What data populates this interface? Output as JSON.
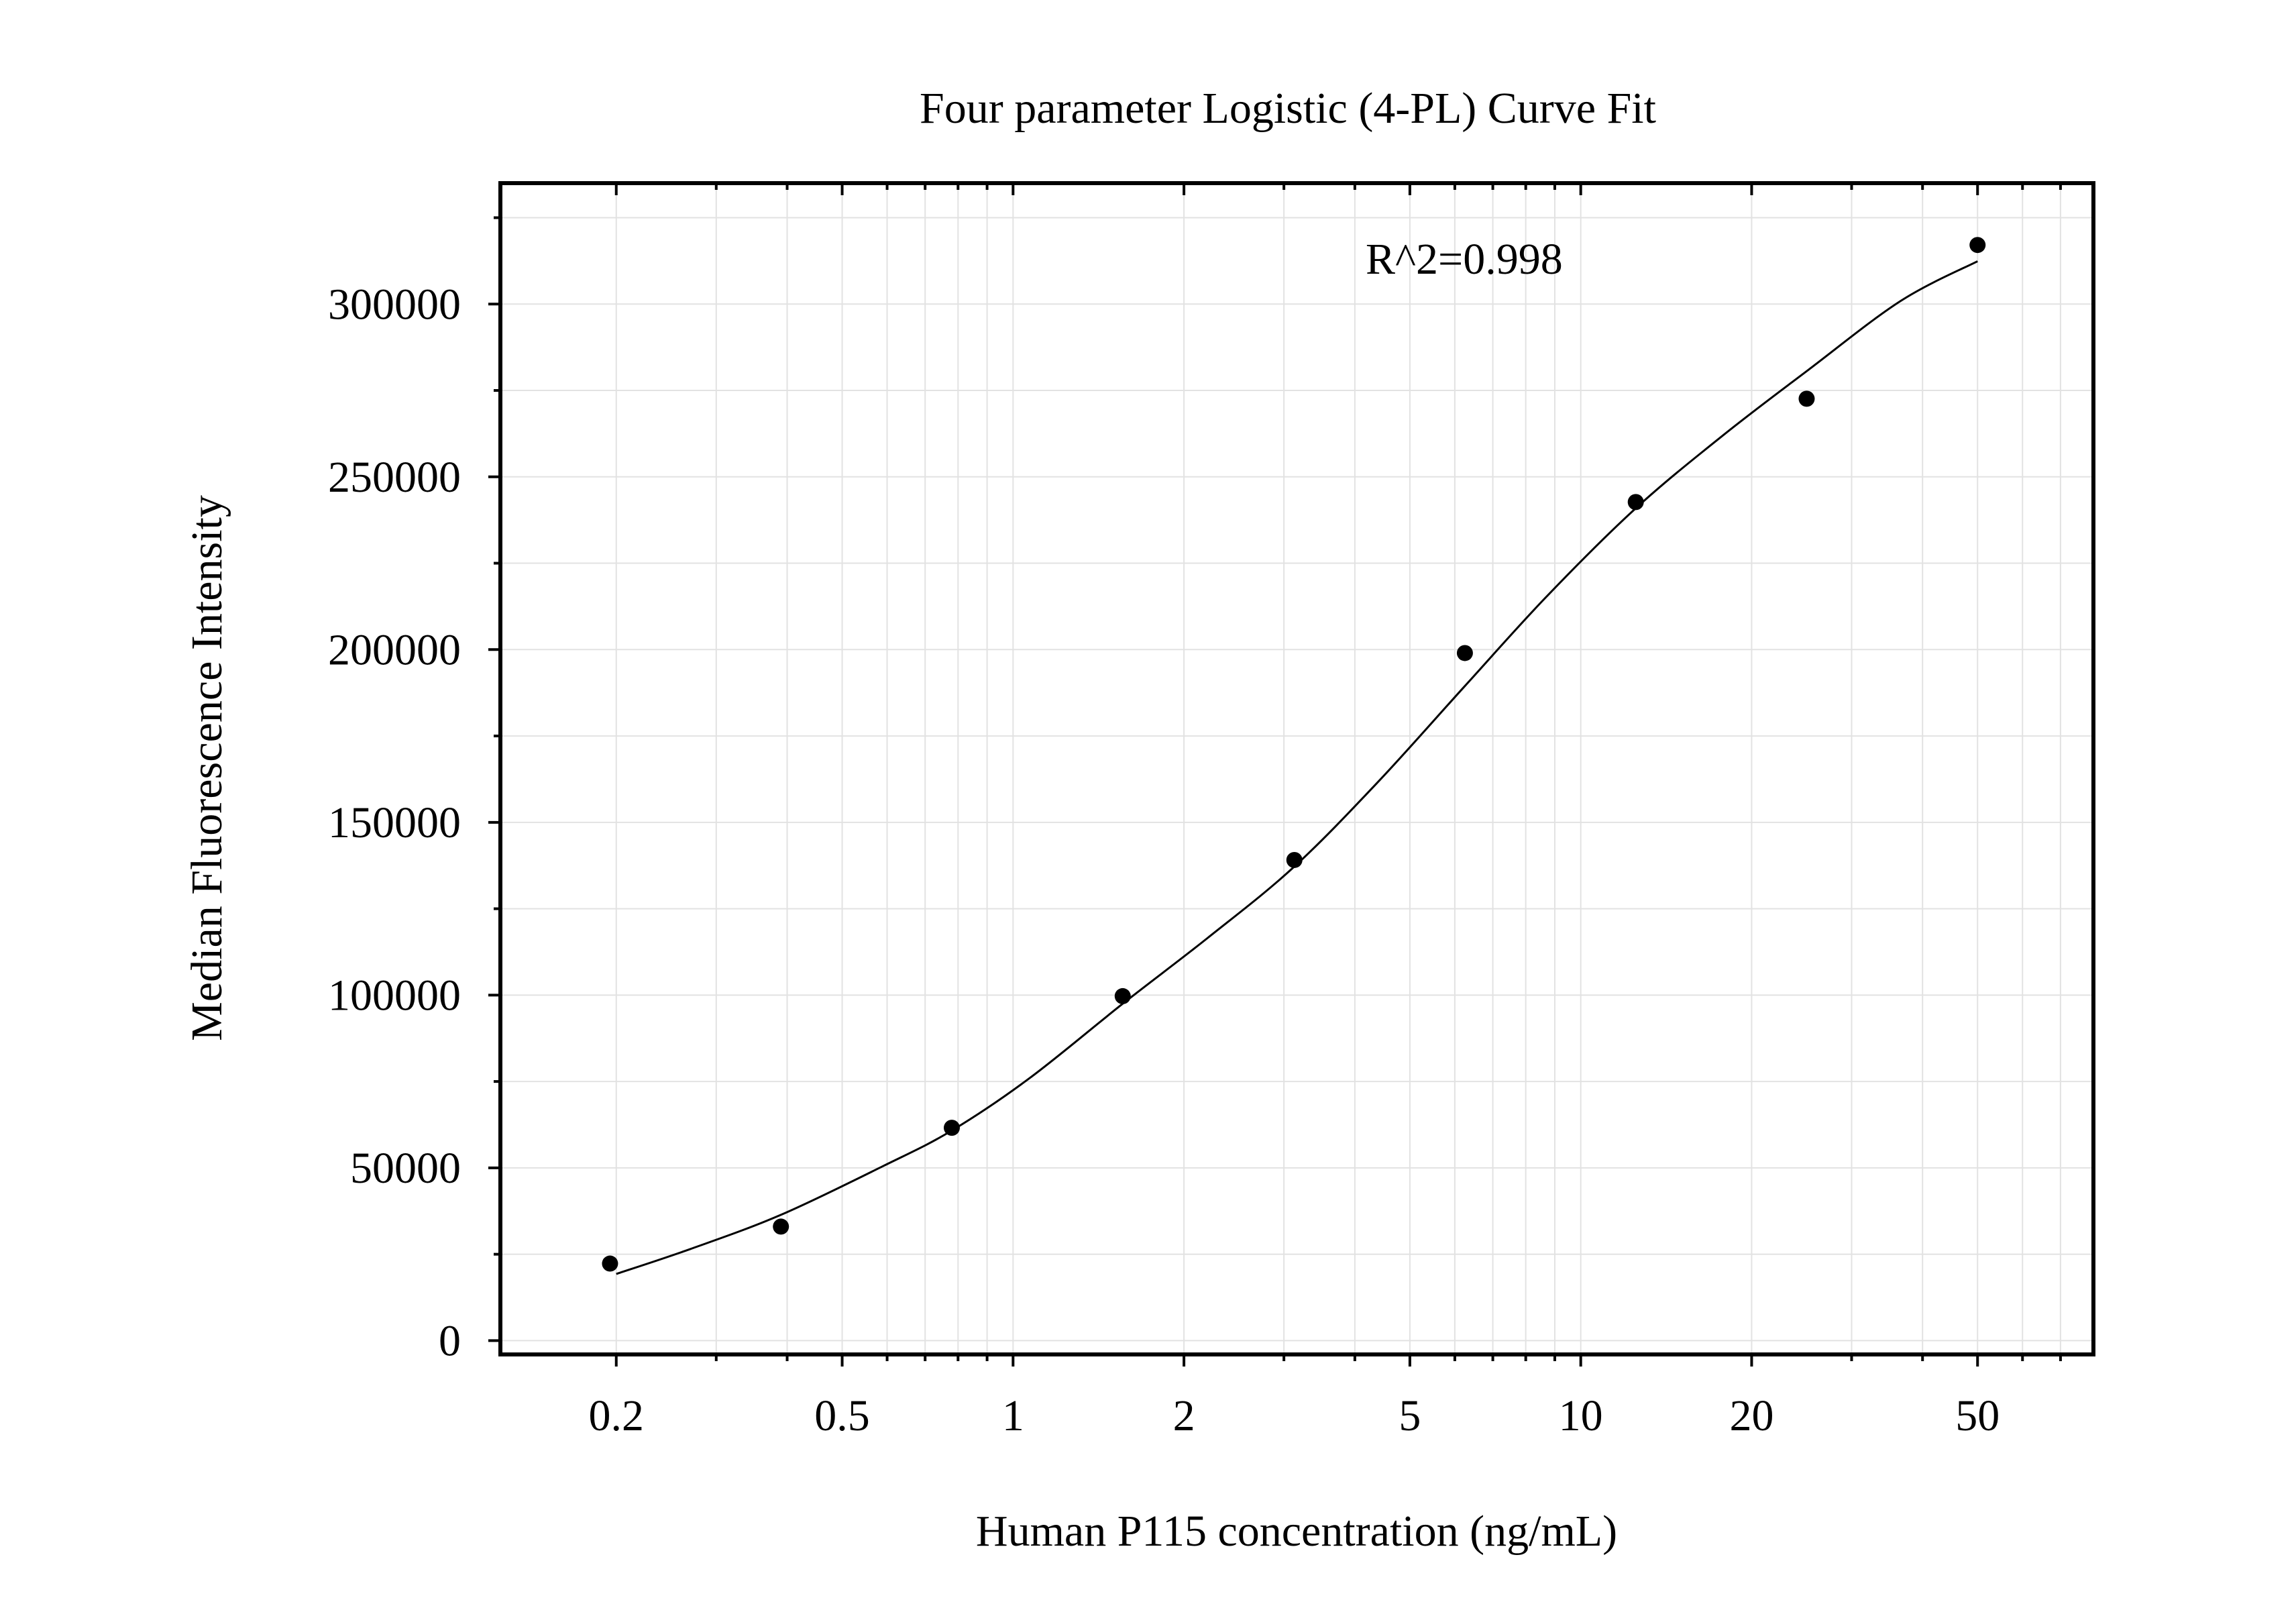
{
  "chart_data": {
    "type": "scatter",
    "title": "Four parameter Logistic (4-PL) Curve Fit",
    "xlabel": "Human P115 concentration (ng/mL)",
    "ylabel": "Median Fluorescence Intensity",
    "annotation": "R^2=0.998",
    "xscale": "log",
    "xlim": [
      0.125,
      80
    ],
    "xticks": [
      0.2,
      0.5,
      1,
      2,
      5,
      10,
      20,
      50
    ],
    "xtick_labels": [
      "0.2",
      "0.5",
      "1",
      "2",
      "5",
      "10",
      "20",
      "50"
    ],
    "yscale": "linear",
    "ylim": [
      -4000,
      335000
    ],
    "yticks": [
      0,
      50000,
      100000,
      150000,
      200000,
      250000,
      300000
    ],
    "ytick_labels": [
      "0",
      "50000",
      "100000",
      "150000",
      "200000",
      "250000",
      "300000"
    ],
    "grid": true,
    "legend": "none",
    "series": [
      {
        "type": "scatter",
        "color": "#000000",
        "x": [
          0.195,
          0.39,
          0.78,
          1.56,
          3.13,
          6.25,
          12.5,
          25,
          50
        ],
        "y": [
          22300,
          33000,
          61600,
          99700,
          139100,
          199000,
          242700,
          272600,
          317100
        ]
      },
      {
        "type": "line",
        "color": "#000000",
        "x": [
          0.2,
          0.27,
          0.39,
          0.59,
          0.78,
          1.07,
          1.56,
          2.2,
          3.12,
          4.4,
          6.23,
          8.7,
          12.5,
          17.9,
          25.1,
          36.6,
          50
        ],
        "y": [
          19300,
          26500,
          36400,
          50500,
          60800,
          76000,
          97500,
          116500,
          137000,
          161800,
          189200,
          215300,
          240900,
          262300,
          280800,
          300900,
          312400
        ]
      }
    ]
  }
}
